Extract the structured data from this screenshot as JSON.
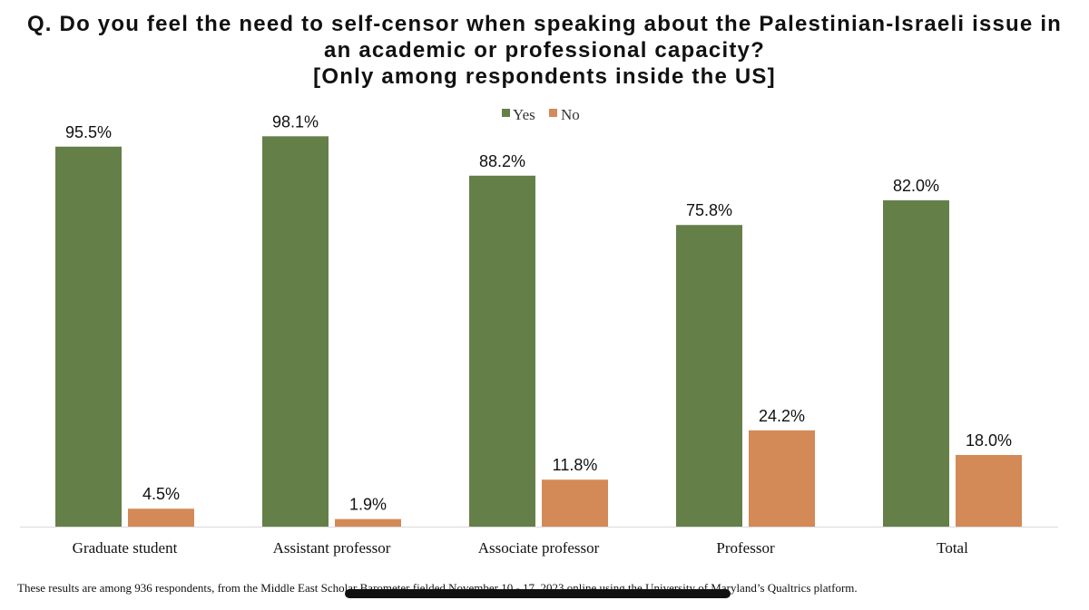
{
  "title_lines": [
    "Q. Do you feel the need to self-censor when speaking about the Palestinian-Israeli issue in",
    "an academic or professional capacity?",
    "[Only among respondents inside the US]"
  ],
  "footnote": "These results are among 936 respondents, from the Middle East Scholar Barometer fielded November 10 - 17, 2023 online using the University of Maryland’s Qualtrics platform.",
  "chart_data": {
    "type": "bar",
    "title": "Q. Do you feel the need to self-censor when speaking about the Palestinian-Israeli issue in an academic or professional capacity? [Only among respondents inside the US]",
    "categories": [
      "Graduate student",
      "Assistant professor",
      "Associate professor",
      "Professor",
      "Total"
    ],
    "series": [
      {
        "name": "Yes",
        "color": "#657f49",
        "values": [
          95.5,
          98.1,
          88.2,
          75.8,
          82.0
        ],
        "labels": [
          "95.5%",
          "98.1%",
          "88.2%",
          "75.8%",
          "82.0%"
        ]
      },
      {
        "name": "No",
        "color": "#d38a57",
        "values": [
          4.5,
          1.9,
          11.8,
          24.2,
          18.0
        ],
        "labels": [
          "4.5%",
          "1.9%",
          "11.8%",
          "24.2%",
          "18.0%"
        ]
      }
    ],
    "ylim": [
      0,
      100
    ],
    "grid": false,
    "legend": "top-center"
  }
}
